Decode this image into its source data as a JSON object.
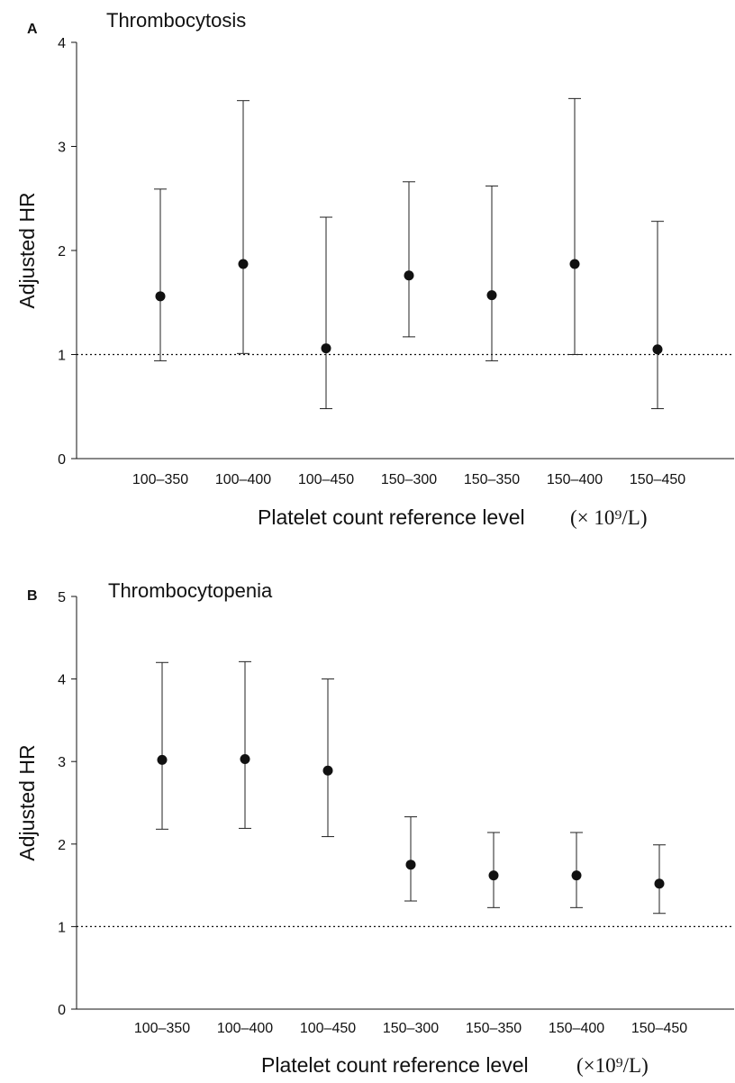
{
  "chart_data": [
    {
      "type": "scatter",
      "panel_letter": "A",
      "title": "Thrombocytosis",
      "ylabel": "Adjusted HR",
      "xlabel": "Platelet count reference level",
      "xlabel_unit": "(× 10⁹/L)",
      "ylim": [
        0,
        4
      ],
      "yticks": [
        "0",
        "1",
        "2",
        "3",
        "4"
      ],
      "reference_line": 1,
      "categories": [
        "100–350",
        "100–400",
        "100–450",
        "150–300",
        "150–350",
        "150–400",
        "150–450"
      ],
      "values": [
        1.56,
        1.87,
        1.06,
        1.76,
        1.57,
        1.87,
        1.05
      ],
      "ci_lower": [
        0.94,
        1.01,
        0.48,
        1.17,
        0.94,
        1.0,
        0.48
      ],
      "ci_upper": [
        2.59,
        3.44,
        2.32,
        2.66,
        2.62,
        3.46,
        2.28
      ]
    },
    {
      "type": "scatter",
      "panel_letter": "B",
      "title": "Thrombocytopenia",
      "ylabel": "Adjusted HR",
      "xlabel": "Platelet count reference level",
      "xlabel_unit": "(×10⁹/L)",
      "ylim": [
        0,
        5
      ],
      "yticks": [
        "0",
        "1",
        "2",
        "3",
        "4",
        "5"
      ],
      "reference_line": 1,
      "categories": [
        "100–350",
        "100–400",
        "100–450",
        "150–300",
        "150–350",
        "150–400",
        "150–450"
      ],
      "values": [
        3.02,
        3.03,
        2.89,
        1.75,
        1.62,
        1.62,
        1.52
      ],
      "ci_lower": [
        2.18,
        2.19,
        2.09,
        1.31,
        1.23,
        1.23,
        1.16
      ],
      "ci_upper": [
        4.2,
        4.21,
        4.0,
        2.33,
        2.14,
        2.14,
        1.99
      ]
    }
  ]
}
